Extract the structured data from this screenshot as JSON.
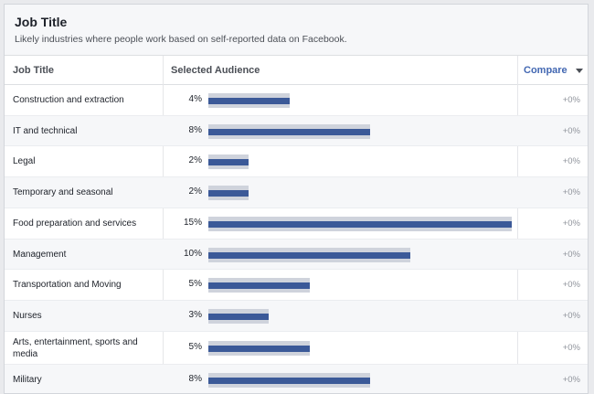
{
  "header": {
    "title": "Job Title",
    "subtitle": "Likely industries where people work based on self-reported data on Facebook."
  },
  "columns": {
    "job_title": "Job Title",
    "selected_audience": "Selected Audience",
    "compare": "Compare"
  },
  "colors": {
    "bar": "#3b5998",
    "track": "#cfd3dc",
    "link": "#4267b2"
  },
  "rows": [
    {
      "label": "Construction and extraction",
      "percent_text": "4%",
      "percent": 4,
      "compare": "+0%"
    },
    {
      "label": "IT and technical",
      "percent_text": "8%",
      "percent": 8,
      "compare": "+0%"
    },
    {
      "label": "Legal",
      "percent_text": "2%",
      "percent": 2,
      "compare": "+0%"
    },
    {
      "label": "Temporary and seasonal",
      "percent_text": "2%",
      "percent": 2,
      "compare": "+0%"
    },
    {
      "label": "Food preparation and services",
      "percent_text": "15%",
      "percent": 15,
      "compare": "+0%"
    },
    {
      "label": "Management",
      "percent_text": "10%",
      "percent": 10,
      "compare": "+0%"
    },
    {
      "label": "Transportation and Moving",
      "percent_text": "5%",
      "percent": 5,
      "compare": "+0%"
    },
    {
      "label": "Nurses",
      "percent_text": "3%",
      "percent": 3,
      "compare": "+0%"
    },
    {
      "label": "Arts, entertainment, sports and media",
      "percent_text": "5%",
      "percent": 5,
      "compare": "+0%"
    },
    {
      "label": "Military",
      "percent_text": "8%",
      "percent": 8,
      "compare": "+0%"
    }
  ]
}
